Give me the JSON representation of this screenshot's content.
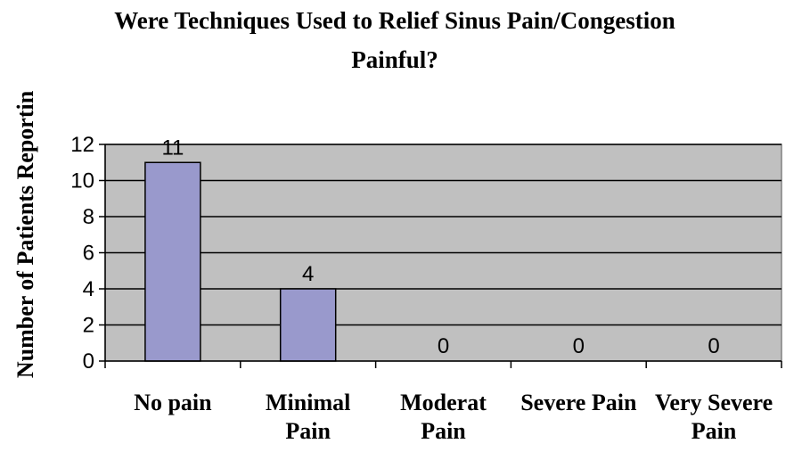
{
  "chart_data": {
    "type": "bar",
    "title_lines": [
      "Were Techniques Used to Relief Sinus Pain/Congestion",
      "Painful?"
    ],
    "ylabel": "Number of Patients Reportin",
    "xlabel": "",
    "categories": [
      [
        "No pain"
      ],
      [
        "Minimal",
        "Pain"
      ],
      [
        "Moderat",
        "Pain"
      ],
      [
        "Severe Pain"
      ],
      [
        "Very Severe",
        "Pain"
      ]
    ],
    "values": [
      11,
      4,
      0,
      0,
      0
    ],
    "data_labels": [
      "11",
      "4",
      "0",
      "0",
      "0"
    ],
    "ylim": [
      0,
      12
    ],
    "yticks": [
      0,
      2,
      4,
      6,
      8,
      10,
      12
    ],
    "grid": true,
    "legend": "none",
    "colors": {
      "bar": "#9999cc",
      "plot_background": "#c0c0c0",
      "gridline": "#000000"
    }
  }
}
